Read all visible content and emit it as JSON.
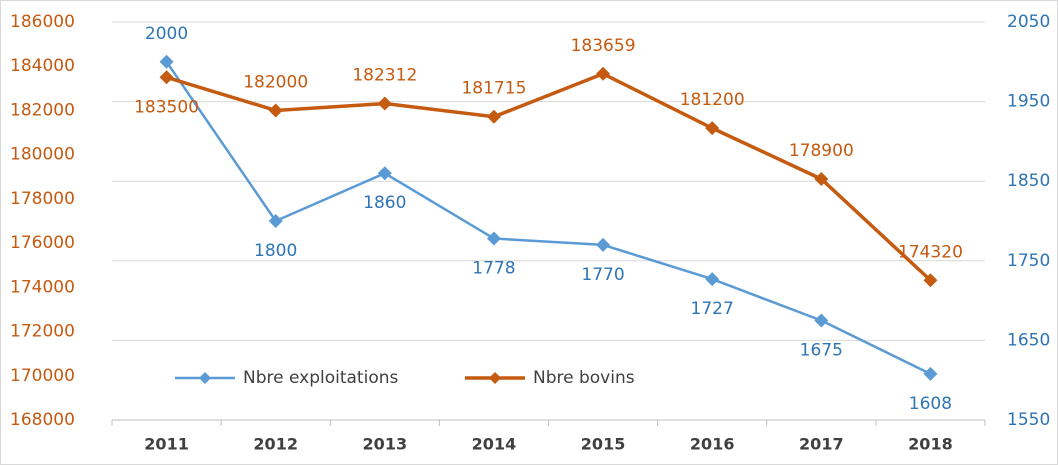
{
  "chart_data": {
    "type": "line",
    "categories": [
      "2011",
      "2012",
      "2013",
      "2014",
      "2015",
      "2016",
      "2017",
      "2018"
    ],
    "series": [
      {
        "name": "Nbre exploitations",
        "color": "#5b9bd5",
        "axis": "y2",
        "values": [
          2000,
          1800,
          1860,
          1778,
          1770,
          1727,
          1675,
          1608
        ]
      },
      {
        "name": "Nbre bovins",
        "color": "#c55a11",
        "values": [
          183500,
          182000,
          182312,
          181715,
          183659,
          181200,
          178900,
          174320
        ]
      }
    ],
    "ylim": [
      168000,
      186000
    ],
    "yticks": [
      168000,
      170000,
      172000,
      174000,
      176000,
      178000,
      180000,
      182000,
      184000,
      186000
    ],
    "y2lim": [
      1550,
      2050
    ],
    "y2ticks": [
      1550,
      1650,
      1750,
      1850,
      1950,
      2050
    ],
    "grid": true,
    "legend": "bottom-left"
  }
}
